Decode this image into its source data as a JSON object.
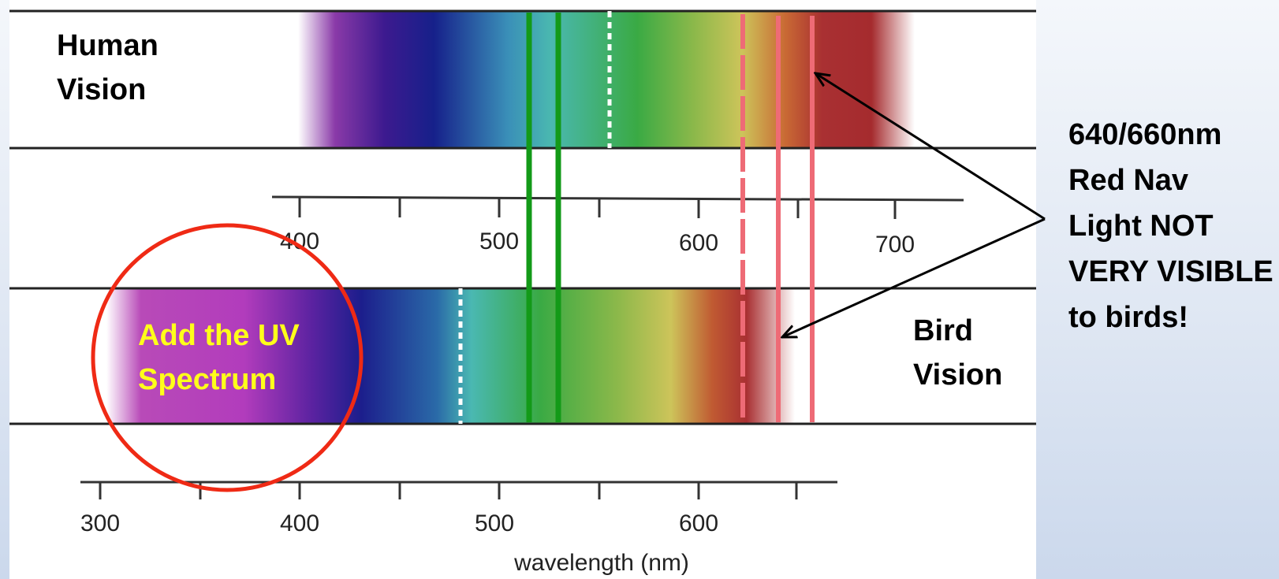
{
  "diagram": {
    "human_label": "Human\nVision",
    "bird_label": "Bird\nVision",
    "note": "640/660nm\nRed Nav\nLight NOT\nVERY VISIBLE\nto birds!",
    "uv_callout": "Add the UV\nSpectrum",
    "top_axis_ticks": [
      "400",
      "500",
      "600",
      "700"
    ],
    "bottom_axis_ticks": [
      "300",
      "400",
      "500",
      "600"
    ],
    "axis_title": "wavelength (nm)",
    "colors": {
      "green_marker": "#139a18",
      "red_marker": "#ee6b76",
      "uv_circle": "#ef2a15",
      "uv_text": "#ffff1a",
      "arrow": "#000000"
    }
  }
}
